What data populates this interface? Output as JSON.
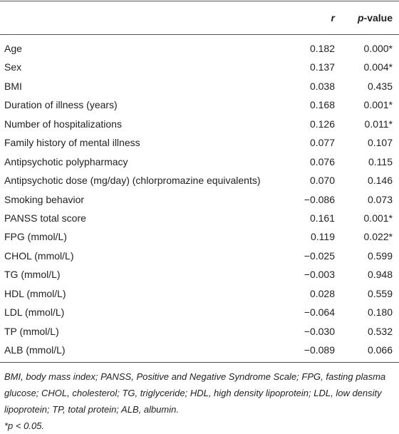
{
  "table": {
    "header": [
      "r",
      [
        "p",
        "-value"
      ]
    ],
    "rows": [
      [
        "Age",
        "0.182",
        "0.000*"
      ],
      [
        "Sex",
        "0.137",
        "0.004*"
      ],
      [
        "BMI",
        "0.038",
        "0.435"
      ],
      [
        "Duration of illness (years)",
        "0.168",
        "0.001*"
      ],
      [
        "Number of hospitalizations",
        "0.126",
        "0.011*"
      ],
      [
        "Family history of mental illness",
        "0.077",
        "0.107"
      ],
      [
        "Antipsychotic polypharmacy",
        "0.076",
        "0.115"
      ],
      [
        "Antipsychotic dose (mg/day) (chlorpromazine equivalents)",
        "0.070",
        "0.146"
      ],
      [
        "Smoking behavior",
        "−0.086",
        "0.073"
      ],
      [
        "PANSS total score",
        "0.161",
        "0.001*"
      ],
      [
        "FPG (mmol/L)",
        "0.119",
        "0.022*"
      ],
      [
        "CHOL (mmol/L)",
        "−0.025",
        "0.599"
      ],
      [
        "TG (mmol/L)",
        "−0.003",
        "0.948"
      ],
      [
        "HDL (mmol/L)",
        "0.028",
        "0.559"
      ],
      [
        "LDL (mmol/L)",
        "−0.064",
        "0.180"
      ],
      [
        "TP (mmol/L)",
        "−0.030",
        "0.532"
      ],
      [
        "ALB (mmol/L)",
        "−0.089",
        "0.066"
      ]
    ]
  },
  "footnotes": [
    "BMI, body mass index; PANSS, Positive and Negative Syndrome Scale; FPG, fasting plasma glucose; CHOL, cholesterol; TG, triglyceride; HDL, high density lipoprotein; LDL, low density lipoprotein; TP, total protein; ALB, albumin.",
    "*p < 0.05."
  ]
}
